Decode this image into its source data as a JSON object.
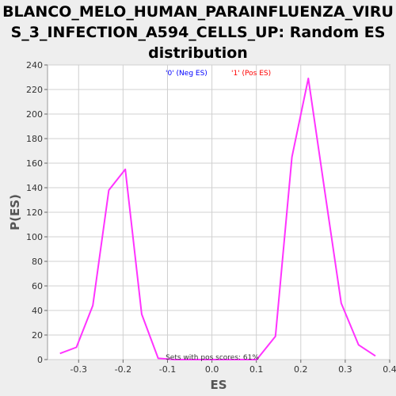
{
  "chart_data": {
    "type": "line",
    "title_lines": [
      "BLANCO_MELO_HUMAN_PARAINFLUENZA_VIRU",
      "S_3_INFECTION_A594_CELLS_UP: Random ES",
      "distribution"
    ],
    "xlabel": "ES",
    "ylabel": "P(ES)",
    "xlim": [
      -0.37,
      0.4
    ],
    "ylim": [
      0,
      240
    ],
    "x_ticks": [
      -0.3,
      -0.2,
      -0.1,
      0.0,
      0.1,
      0.2,
      0.3,
      0.4
    ],
    "x_tick_labels": [
      "-0.3",
      "-0.2",
      "-0.1",
      "0.0",
      "0.1",
      "0.2",
      "0.3",
      "0.4"
    ],
    "y_ticks": [
      0,
      20,
      40,
      60,
      80,
      100,
      120,
      140,
      160,
      180,
      200,
      220,
      240
    ],
    "y_tick_labels": [
      "0",
      "20",
      "40",
      "60",
      "80",
      "100",
      "120",
      "140",
      "160",
      "180",
      "200",
      "220",
      "240"
    ],
    "grid": true,
    "legend": [
      {
        "label": "'0' (Neg ES)",
        "color": "#0000ff"
      },
      {
        "label": "'1' (Pos ES)",
        "color": "#ff0000"
      }
    ],
    "annotation": "Sets with pos scores: 61%",
    "series": [
      {
        "color": "#ff33ff",
        "x": [
          -0.342,
          -0.305,
          -0.268,
          -0.232,
          -0.195,
          -0.158,
          -0.121,
          -0.084,
          -0.047,
          -0.01,
          0.027,
          0.064,
          0.101,
          0.143,
          0.18,
          0.217,
          0.254,
          0.291,
          0.33,
          0.368
        ],
        "y": [
          5,
          10,
          44,
          138,
          155,
          37,
          1,
          0,
          0,
          0,
          0,
          0,
          0,
          19,
          165,
          229,
          137,
          46,
          12,
          3
        ]
      }
    ]
  }
}
